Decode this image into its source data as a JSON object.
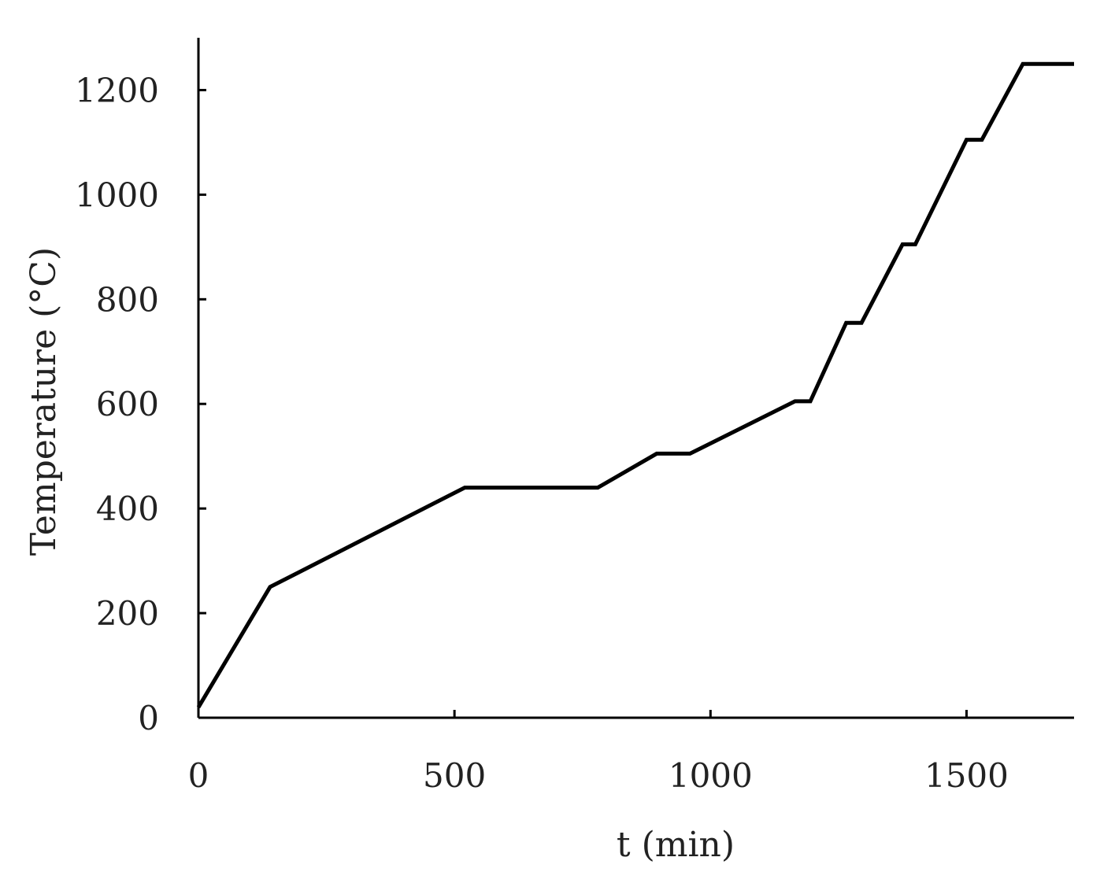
{
  "chart_data": {
    "type": "line",
    "title": "",
    "xlabel": "t (min)",
    "ylabel": "Temperature (°C)",
    "xlim": [
      0,
      1710
    ],
    "ylim": [
      0,
      1300
    ],
    "xticks": [
      0,
      500,
      1000,
      1500
    ],
    "yticks": [
      0,
      200,
      400,
      600,
      800,
      1000,
      1200
    ],
    "grid": false,
    "legend": "none",
    "line_color": "#000000",
    "series": [
      {
        "x": [
          0,
          140,
          520,
          780,
          895,
          960,
          1165,
          1195,
          1265,
          1295,
          1375,
          1400,
          1500,
          1530,
          1610,
          1710
        ],
        "y": [
          20,
          250,
          440,
          440,
          505,
          505,
          605,
          605,
          755,
          755,
          905,
          905,
          1105,
          1105,
          1250,
          1250
        ]
      }
    ]
  }
}
